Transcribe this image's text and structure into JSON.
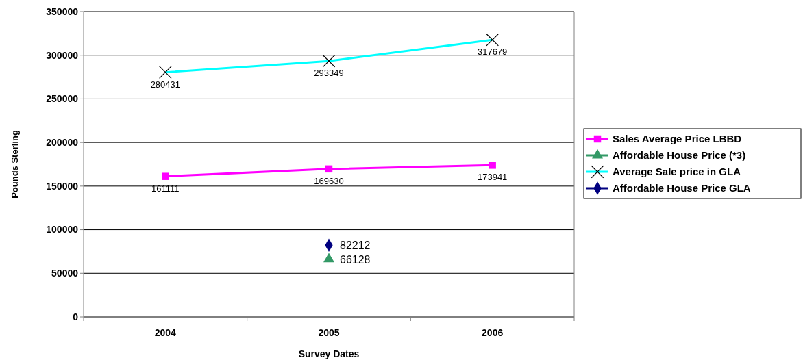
{
  "chart_data": {
    "type": "line",
    "xlabel": "Survey Dates",
    "ylabel": "Pounds Sterling",
    "categories": [
      "2004",
      "2005",
      "2006"
    ],
    "ylim": [
      0,
      350000
    ],
    "yticks": [
      0,
      50000,
      100000,
      150000,
      200000,
      250000,
      300000,
      350000
    ],
    "grid": "y",
    "legend": "right",
    "data_labels": true,
    "series": [
      {
        "name": "Sales Average Price LBBD",
        "color": "#ff00ff",
        "marker": "square",
        "values": [
          161111,
          169630,
          173941
        ]
      },
      {
        "name": "Affordable House Price (*3)",
        "color": "#339966",
        "marker": "triangle",
        "values": [
          null,
          66128,
          null
        ]
      },
      {
        "name": "Average Sale price in GLA",
        "color": "#00ffff",
        "marker": "cross",
        "values": [
          280431,
          293349,
          317679
        ]
      },
      {
        "name": "Affordable House Price GLA",
        "color": "#000080",
        "marker": "diamond",
        "values": [
          null,
          82212,
          null
        ]
      }
    ]
  }
}
